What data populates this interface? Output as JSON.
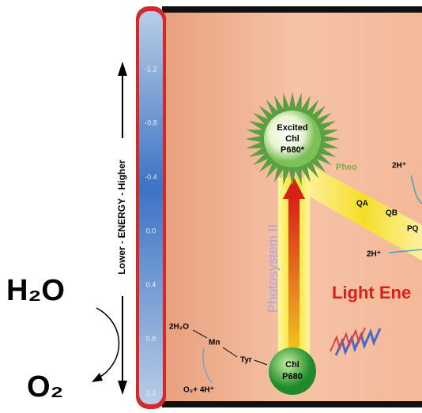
{
  "scale": {
    "axis_label": "Lower - ENERGY - Higher",
    "ticks": [
      "-1.2",
      "-0.8",
      "-0.4",
      "0.0",
      "0.4",
      "0.8",
      "1.2"
    ]
  },
  "left": {
    "water": "H₂O",
    "oxygen": "O₂"
  },
  "diagram": {
    "excited": [
      "Excited",
      "Chl",
      "P680*"
    ],
    "pheo": "Pheo",
    "qa": "QA",
    "qb": "QB",
    "pq": "PQ",
    "proton_top": "2H⁺",
    "proton_mid": "2H⁺",
    "photosystem": "Photosystem II",
    "light": "Light Ene",
    "water_split": "2H₂O",
    "mn": "Mn",
    "tyr": "Tyr",
    "ground": [
      "Chl",
      "P680"
    ],
    "products": "O₂+ 4H⁺"
  }
}
